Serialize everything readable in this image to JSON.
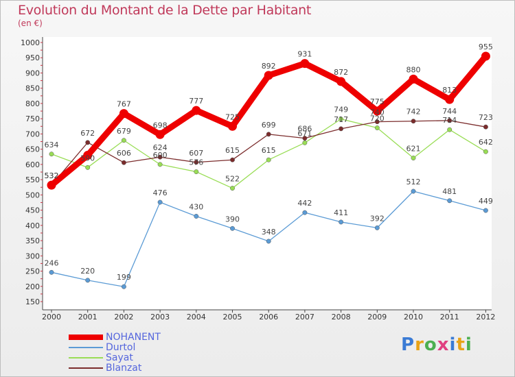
{
  "title": "Evolution du Montant de la Dette par Habitant",
  "subtitle": "(en €)",
  "logo": {
    "text": "Proxiti",
    "letter_colors": [
      "#3a7bd5",
      "#e8a317",
      "#4caf50",
      "#e04080",
      "#3a7bd5",
      "#e8a317",
      "#4caf50"
    ]
  },
  "chart_data": {
    "type": "line",
    "title": "Evolution du Montant de la Dette par Habitant",
    "subtitle": "(en €)",
    "x": [
      "2000",
      "2001",
      "2002",
      "2003",
      "2004",
      "2005",
      "2006",
      "2007",
      "2008",
      "2009",
      "2010",
      "2011",
      "2012"
    ],
    "ylim": [
      150,
      1000
    ],
    "yticks": [
      150,
      200,
      250,
      300,
      350,
      400,
      450,
      500,
      550,
      600,
      650,
      700,
      750,
      800,
      850,
      900,
      950,
      1000
    ],
    "grid": false,
    "legend_position": "bottom-left",
    "series": [
      {
        "name": "NOHANENT",
        "color": "#ee0000",
        "values": [
          532,
          630,
          767,
          698,
          777,
          725,
          892,
          931,
          872,
          775,
          880,
          813,
          955
        ],
        "labels": [
          "532",
          "",
          "767",
          "698",
          "777",
          "725",
          "892",
          "931",
          "872",
          "775",
          "880",
          "813",
          "955"
        ]
      },
      {
        "name": "Durtol",
        "color": "#5b9bd5",
        "values": [
          246,
          220,
          199,
          476,
          430,
          390,
          348,
          442,
          411,
          392,
          512,
          481,
          449
        ],
        "labels": [
          "246",
          "220",
          "199",
          "476",
          "430",
          "390",
          "348",
          "442",
          "411",
          "392",
          "512",
          "481",
          "449"
        ]
      },
      {
        "name": "Sayat",
        "color": "#99dd55",
        "values": [
          634,
          590,
          679,
          600,
          576,
          522,
          615,
          671,
          749,
          720,
          621,
          714,
          642
        ],
        "labels": [
          "634",
          "590",
          "679",
          "600",
          "576",
          "522",
          "615",
          "671",
          "749",
          "720",
          "621",
          "714",
          "642"
        ]
      },
      {
        "name": "Blanzat",
        "color": "#7b2c2c",
        "values": [
          532,
          672,
          606,
          624,
          607,
          615,
          699,
          686,
          717,
          740,
          742,
          744,
          723
        ],
        "labels": [
          "532",
          "672",
          "606",
          "624",
          "607",
          "615",
          "699",
          "686",
          "717",
          "740",
          "742",
          "744",
          "723"
        ]
      }
    ]
  }
}
